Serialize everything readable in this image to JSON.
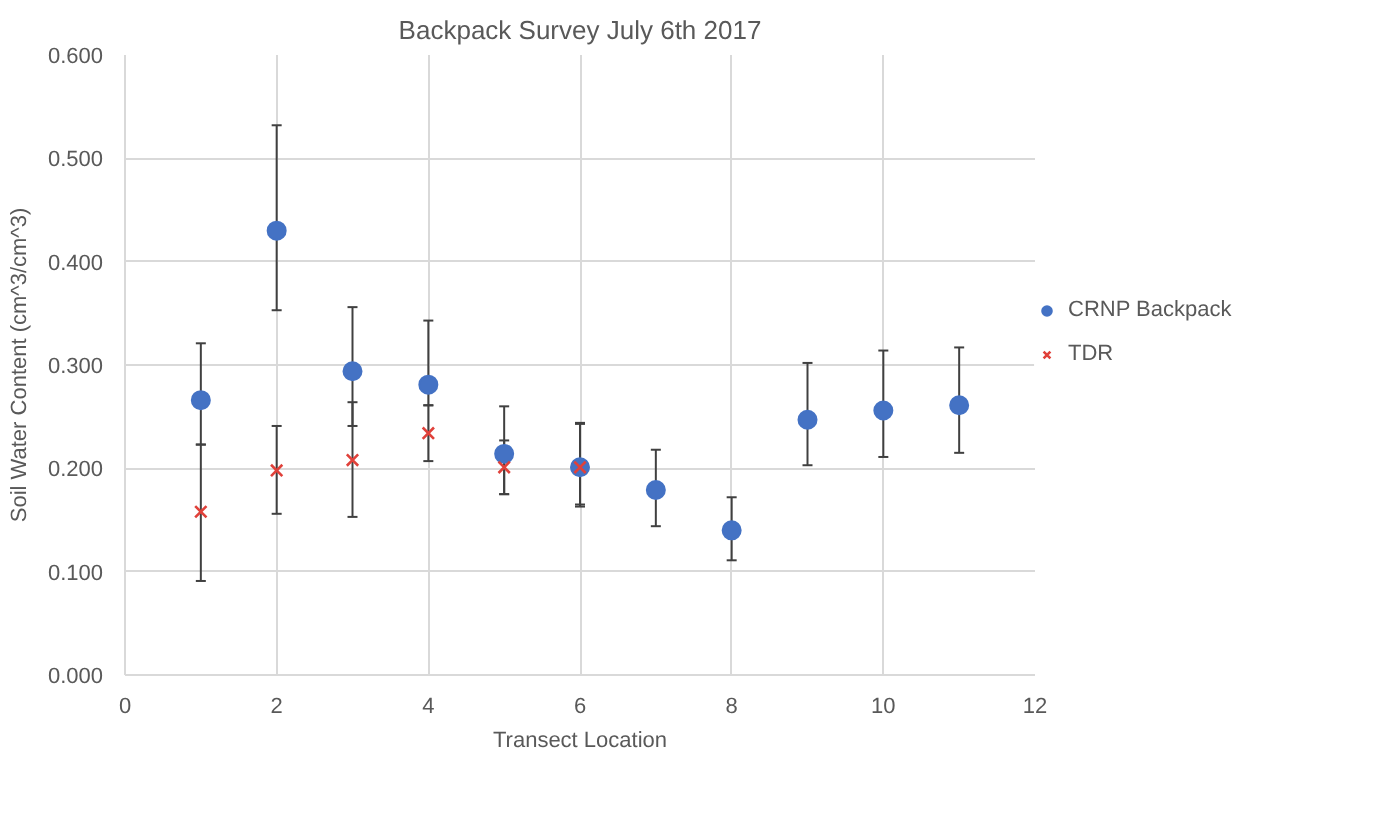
{
  "chart_data": {
    "type": "scatter",
    "title": "Backpack Survey July 6th 2017",
    "xlabel": "Transect Location",
    "ylabel": "Soil Water Content (cm^3/cm^3)",
    "xlim": [
      0,
      12
    ],
    "xticks": [
      0,
      2,
      4,
      6,
      8,
      10,
      12
    ],
    "ylim": [
      0,
      0.6
    ],
    "yticks": [
      {
        "value": 0,
        "label": "0.000"
      },
      {
        "value": 0.1,
        "label": "0.100"
      },
      {
        "value": 0.2,
        "label": "0.200"
      },
      {
        "value": 0.3,
        "label": "0.300"
      },
      {
        "value": 0.4,
        "label": "0.400"
      },
      {
        "value": 0.5,
        "label": "0.500"
      },
      {
        "value": 0.6,
        "label": "0.600"
      }
    ],
    "grid": true,
    "legend": "right",
    "series": [
      {
        "name": "CRNP Backpack",
        "color": "#4472c4",
        "marker": "circle",
        "x": [
          1,
          2,
          3,
          4,
          5,
          6,
          7,
          8,
          9,
          10,
          11
        ],
        "values": [
          0.266,
          0.43,
          0.294,
          0.281,
          0.214,
          0.201,
          0.179,
          0.14,
          0.247,
          0.256,
          0.261
        ],
        "errors": [
          [
            0.223,
            0.321
          ],
          [
            0.353,
            0.532
          ],
          [
            0.241,
            0.356
          ],
          [
            0.261,
            0.343
          ],
          [
            0.175,
            0.26
          ],
          [
            0.163,
            0.244
          ],
          [
            0.144,
            0.218
          ],
          [
            0.111,
            0.172
          ],
          [
            0.203,
            0.302
          ],
          [
            0.211,
            0.314
          ],
          [
            0.215,
            0.317
          ]
        ]
      },
      {
        "name": "TDR",
        "color": "#e0413a",
        "marker": "cross",
        "x": [
          1,
          2,
          3,
          4,
          5,
          6
        ],
        "values": [
          0.158,
          0.198,
          0.208,
          0.234,
          0.201,
          0.201
        ],
        "errors": [
          [
            0.091,
            0.223
          ],
          [
            0.156,
            0.241
          ],
          [
            0.153,
            0.264
          ],
          [
            0.207,
            0.261
          ],
          [
            0.175,
            0.227
          ],
          [
            0.165,
            0.243
          ]
        ]
      }
    ]
  }
}
